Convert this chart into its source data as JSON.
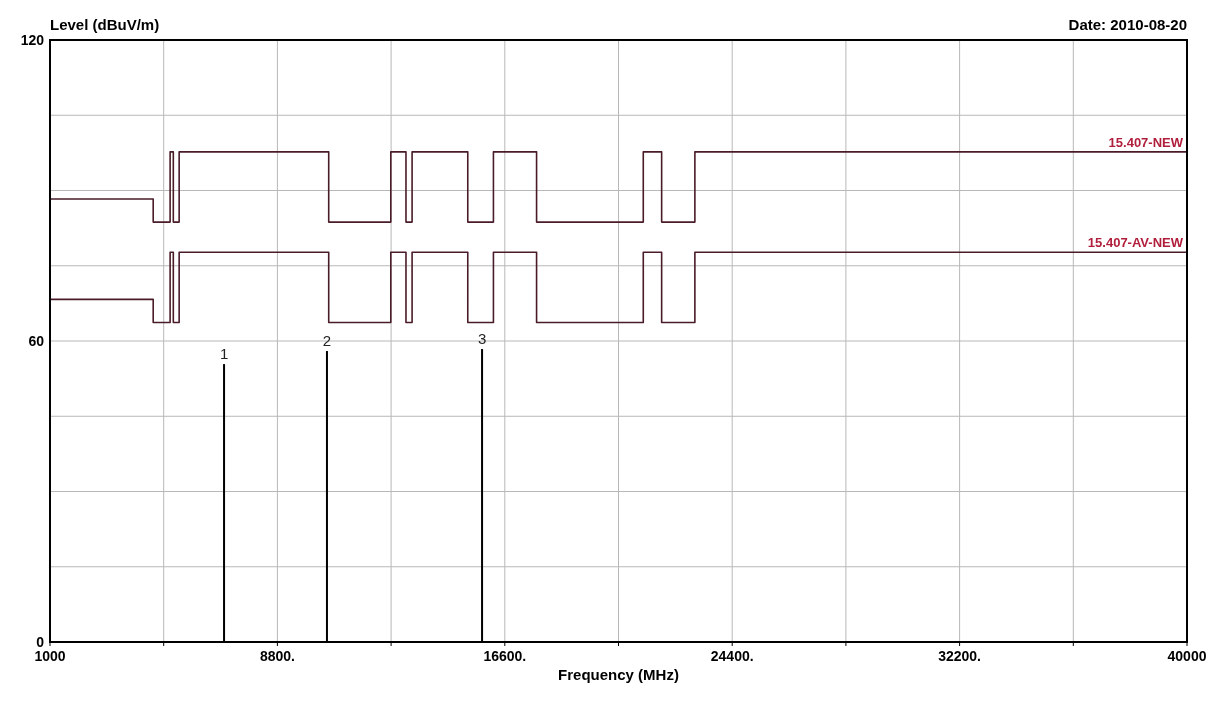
{
  "chart_data": {
    "type": "step",
    "ylabel": "Level (dBuV/m)",
    "xlabel": "Frequency (MHz)",
    "annotations": [
      "Date: 2010-08-20",
      {
        "text": "1",
        "x": 6970,
        "y": 55.4
      },
      {
        "text": "2",
        "x": 10500,
        "y": 58
      },
      {
        "text": "3",
        "x": 15820,
        "y": 58.4
      }
    ],
    "xlim": [
      1000,
      40000
    ],
    "ylim": [
      0,
      120
    ],
    "xticks": [
      1000,
      {
        "value": 4900,
        "label": null
      },
      {
        "value": 8800,
        "label": "8800."
      },
      {
        "value": 12700,
        "label": null
      },
      {
        "value": 16600,
        "label": "16600."
      },
      {
        "value": 20500,
        "label": null
      },
      {
        "value": 24400,
        "label": "24400."
      },
      {
        "value": 28300,
        "label": null
      },
      {
        "value": 32200,
        "label": "32200."
      },
      {
        "value": 36100,
        "label": null
      },
      40000
    ],
    "yticks": [
      0,
      {
        "value": 15,
        "label": null
      },
      {
        "value": 30,
        "label": null
      },
      {
        "value": 45,
        "label": null
      },
      60,
      {
        "value": 75,
        "label": null
      },
      {
        "value": 90,
        "label": null
      },
      {
        "value": 105,
        "label": null
      },
      120
    ],
    "grid": true,
    "series": [
      {
        "name": "15.407-NEW",
        "color": "#4a1c28",
        "x": [
          1000,
          4540,
          5120,
          5230,
          5430,
          10560,
          12690,
          13210,
          13420,
          15330,
          16210,
          17690,
          21350,
          21980,
          23120,
          40000
        ],
        "values": [
          88.3,
          83.7,
          97.7,
          83.7,
          97.7,
          83.7,
          97.7,
          83.7,
          97.7,
          83.7,
          97.7,
          83.7,
          97.7,
          83.7,
          97.7,
          97.7
        ]
      },
      {
        "name": "15.407-AV-NEW",
        "color": "#4a1c28",
        "x": [
          1000,
          4540,
          5120,
          5230,
          5430,
          10560,
          12690,
          13210,
          13420,
          15330,
          16210,
          17690,
          21350,
          21980,
          23120,
          40000
        ],
        "values": [
          68.3,
          63.7,
          77.7,
          63.7,
          77.7,
          63.7,
          77.7,
          63.7,
          77.7,
          63.7,
          77.7,
          63.7,
          77.7,
          63.7,
          77.7,
          77.7
        ]
      },
      {
        "type": "bar",
        "color": "#000000",
        "x": [
          6970,
          10500,
          15820
        ],
        "values": [
          55.4,
          58,
          58.4
        ]
      }
    ]
  }
}
